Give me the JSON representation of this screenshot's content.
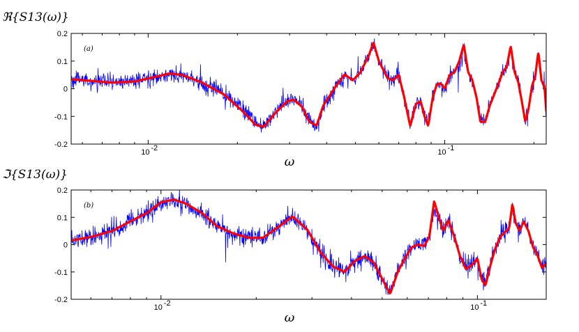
{
  "chart_data": [
    {
      "type": "line",
      "panel": "(a)",
      "title": "ℜ{S13(ω)}",
      "xlabel": "ω",
      "ylabel": "",
      "xscale": "log",
      "xlim": [
        0.0055,
        0.22
      ],
      "ylim": [
        -0.2,
        0.2
      ],
      "yticks": [
        "0.2",
        "0.1",
        "0",
        "-0.1",
        "-0.2"
      ],
      "yticks_values": [
        0.2,
        0.1,
        0,
        -0.1,
        -0.2
      ],
      "xticks": [
        {
          "value": 0.01,
          "label": "10",
          "exp": "-2"
        },
        {
          "value": 0.1,
          "label": "10",
          "exp": "-1"
        }
      ],
      "grid": false,
      "series": [
        {
          "color": "#0000ff",
          "noise": 0.014,
          "x": [
            0.0055,
            0.0065,
            0.0075,
            0.009,
            0.0105,
            0.0118,
            0.013,
            0.015,
            0.018,
            0.021,
            0.023,
            0.0245,
            0.027,
            0.0295,
            0.031,
            0.033,
            0.035,
            0.037,
            0.039,
            0.043,
            0.046,
            0.049,
            0.052,
            0.0555,
            0.0575,
            0.06,
            0.064,
            0.067,
            0.07,
            0.073,
            0.0765,
            0.08,
            0.083,
            0.0855,
            0.088,
            0.091,
            0.094,
            0.097,
            0.1,
            0.104,
            0.108,
            0.112,
            0.116,
            0.12,
            0.124,
            0.128,
            0.132,
            0.137,
            0.142,
            0.147,
            0.152,
            0.157,
            0.162,
            0.167,
            0.172,
            0.177,
            0.182,
            0.187,
            0.192,
            0.197,
            0.202,
            0.207,
            0.212,
            0.217,
            0.22
          ],
          "y": [
            0.034,
            0.028,
            0.022,
            0.026,
            0.042,
            0.05,
            0.046,
            0.022,
            -0.018,
            -0.075,
            -0.12,
            -0.135,
            -0.08,
            -0.04,
            -0.035,
            -0.062,
            -0.115,
            -0.13,
            -0.06,
            0.012,
            0.05,
            0.03,
            0.06,
            0.12,
            0.162,
            0.1,
            0.045,
            0.03,
            0.048,
            -0.03,
            -0.13,
            -0.05,
            -0.04,
            -0.1,
            -0.13,
            -0.03,
            0.015,
            0.02,
            0.0,
            0.05,
            0.06,
            0.09,
            0.155,
            0.06,
            0.03,
            -0.03,
            -0.1,
            -0.115,
            -0.06,
            -0.02,
            0.02,
            0.06,
            0.08,
            0.145,
            0.06,
            0.025,
            -0.04,
            -0.11,
            -0.07,
            0.012,
            0.045,
            0.13,
            0.03,
            0.01,
            -0.1
          ]
        },
        {
          "color": "#ff0000",
          "x": [
            0.0055,
            0.0065,
            0.0075,
            0.009,
            0.0105,
            0.0118,
            0.013,
            0.015,
            0.018,
            0.021,
            0.023,
            0.0245,
            0.027,
            0.0295,
            0.031,
            0.033,
            0.035,
            0.037,
            0.039,
            0.043,
            0.046,
            0.049,
            0.052,
            0.0555,
            0.0575,
            0.06,
            0.064,
            0.067,
            0.07,
            0.073,
            0.0765,
            0.08,
            0.083,
            0.0855,
            0.088,
            0.091,
            0.094,
            0.097,
            0.1,
            0.104,
            0.108,
            0.112,
            0.116,
            0.12,
            0.124,
            0.128,
            0.132,
            0.137,
            0.142,
            0.147,
            0.152,
            0.157,
            0.162,
            0.167,
            0.172,
            0.177,
            0.182,
            0.187,
            0.192,
            0.197,
            0.202,
            0.207,
            0.212,
            0.217,
            0.22
          ],
          "y": [
            0.034,
            0.028,
            0.022,
            0.026,
            0.042,
            0.055,
            0.05,
            0.025,
            -0.02,
            -0.085,
            -0.13,
            -0.138,
            -0.085,
            -0.045,
            -0.04,
            -0.065,
            -0.12,
            -0.133,
            -0.06,
            0.01,
            0.052,
            0.03,
            0.06,
            0.12,
            0.168,
            0.1,
            0.04,
            0.03,
            0.05,
            -0.03,
            -0.135,
            -0.055,
            -0.045,
            -0.1,
            -0.135,
            -0.035,
            0.015,
            0.02,
            0.0,
            0.05,
            0.06,
            0.1,
            0.16,
            0.06,
            0.03,
            -0.03,
            -0.12,
            -0.12,
            -0.06,
            -0.02,
            0.02,
            0.06,
            0.08,
            0.155,
            0.06,
            0.025,
            -0.045,
            -0.12,
            -0.07,
            0.01,
            0.045,
            0.135,
            0.03,
            0.01,
            -0.08
          ]
        }
      ]
    },
    {
      "type": "line",
      "panel": "(b)",
      "title": "ℑ{S13(ω)}",
      "xlabel": "ω",
      "ylabel": "",
      "xscale": "log",
      "xlim": [
        0.0052,
        0.165
      ],
      "ylim": [
        -0.2,
        0.2
      ],
      "yticks": [
        "0.2",
        "0.1",
        "0",
        "-0.1",
        "-0.2"
      ],
      "yticks_values": [
        0.2,
        0.1,
        0,
        -0.1,
        -0.2
      ],
      "xticks": [
        {
          "value": 0.01,
          "label": "10",
          "exp": "-2"
        },
        {
          "value": 0.1,
          "label": "10",
          "exp": "-1"
        }
      ],
      "grid": false,
      "series": [
        {
          "color": "#0000ff",
          "noise": 0.016,
          "x": [
            0.0052,
            0.006,
            0.007,
            0.008,
            0.009,
            0.01,
            0.011,
            0.012,
            0.0135,
            0.015,
            0.017,
            0.019,
            0.021,
            0.0235,
            0.026,
            0.029,
            0.032,
            0.035,
            0.038,
            0.041,
            0.044,
            0.047,
            0.05,
            0.053,
            0.056,
            0.059,
            0.062,
            0.065,
            0.068,
            0.0705,
            0.073,
            0.0755,
            0.078,
            0.081,
            0.0845,
            0.088,
            0.092,
            0.096,
            0.1,
            0.103,
            0.106,
            0.11,
            0.114,
            0.118,
            0.122,
            0.126,
            0.129,
            0.132,
            0.136,
            0.14,
            0.145,
            0.15,
            0.155,
            0.16,
            0.165
          ],
          "y": [
            0.015,
            0.028,
            0.05,
            0.085,
            0.115,
            0.15,
            0.16,
            0.145,
            0.115,
            0.068,
            0.04,
            0.025,
            0.025,
            0.062,
            0.1,
            0.055,
            -0.03,
            -0.08,
            -0.098,
            -0.058,
            -0.04,
            -0.065,
            -0.12,
            -0.17,
            -0.095,
            -0.05,
            -0.01,
            0.0,
            -0.005,
            0.03,
            0.125,
            0.095,
            0.05,
            0.085,
            0.03,
            -0.04,
            -0.085,
            -0.07,
            -0.05,
            -0.12,
            -0.14,
            -0.07,
            -0.012,
            0.028,
            0.045,
            0.06,
            0.145,
            0.08,
            0.05,
            0.09,
            0.05,
            -0.01,
            -0.04,
            -0.08,
            -0.07
          ]
        },
        {
          "color": "#ff0000",
          "x": [
            0.0052,
            0.006,
            0.007,
            0.008,
            0.009,
            0.01,
            0.011,
            0.012,
            0.0135,
            0.015,
            0.017,
            0.019,
            0.021,
            0.0235,
            0.026,
            0.029,
            0.032,
            0.035,
            0.038,
            0.041,
            0.044,
            0.047,
            0.05,
            0.053,
            0.056,
            0.059,
            0.062,
            0.065,
            0.068,
            0.0705,
            0.073,
            0.0755,
            0.078,
            0.081,
            0.0845,
            0.088,
            0.092,
            0.096,
            0.1,
            0.103,
            0.106,
            0.11,
            0.114,
            0.118,
            0.122,
            0.126,
            0.129,
            0.132,
            0.136,
            0.14,
            0.145,
            0.15,
            0.155,
            0.16,
            0.165
          ],
          "y": [
            0.015,
            0.028,
            0.05,
            0.085,
            0.115,
            0.155,
            0.165,
            0.15,
            0.115,
            0.068,
            0.04,
            0.025,
            0.025,
            0.065,
            0.103,
            0.055,
            -0.03,
            -0.08,
            -0.1,
            -0.06,
            -0.042,
            -0.065,
            -0.125,
            -0.18,
            -0.1,
            -0.05,
            -0.01,
            0.0,
            -0.005,
            0.03,
            0.16,
            0.1,
            0.05,
            0.09,
            0.03,
            -0.04,
            -0.09,
            -0.075,
            -0.05,
            -0.125,
            -0.15,
            -0.075,
            -0.012,
            0.028,
            0.045,
            0.06,
            0.15,
            0.08,
            0.05,
            0.085,
            0.05,
            -0.01,
            -0.04,
            -0.085,
            -0.07
          ]
        }
      ]
    }
  ]
}
